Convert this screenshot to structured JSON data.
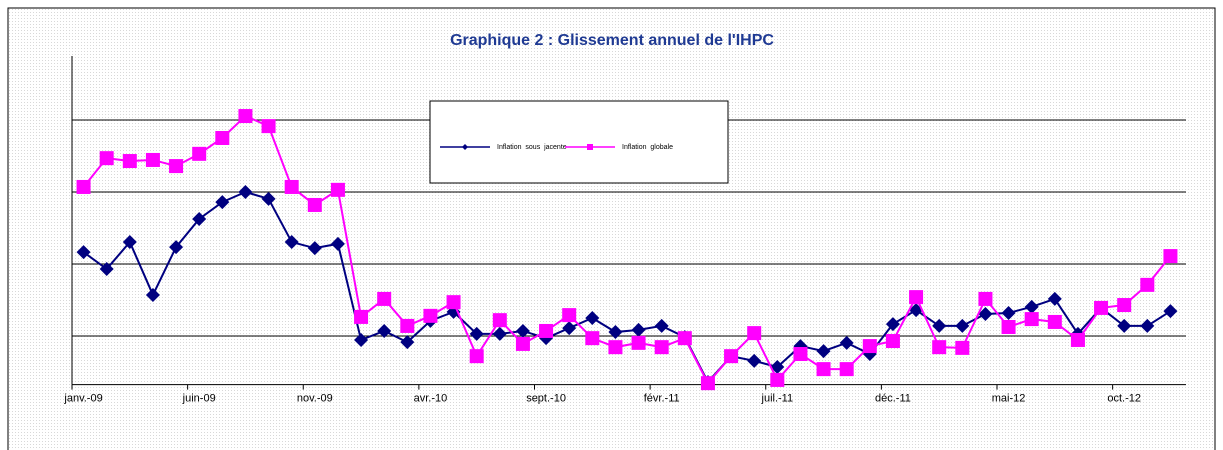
{
  "chart_data": {
    "type": "line",
    "title": "Graphique 2 : Glissement annuel de l'IHPC",
    "categories": [
      "janv.-09",
      null,
      null,
      null,
      null,
      "juin-09",
      null,
      null,
      null,
      null,
      "nov.-09",
      null,
      null,
      null,
      null,
      "avr.-10",
      null,
      null,
      null,
      null,
      "sept.-10",
      null,
      null,
      null,
      null,
      "févr.-11",
      null,
      null,
      null,
      null,
      "juil.-11",
      null,
      null,
      null,
      null,
      "déc.-11",
      null,
      null,
      null,
      null,
      "mai-12",
      null,
      null,
      null,
      null,
      "oct.-12",
      null,
      null
    ],
    "series": [
      {
        "name": "Inflation  sous  jacente",
        "color": "#000080",
        "marker": "diamond",
        "values": [
          2.33,
          1.86,
          2.61,
          1.14,
          2.47,
          3.25,
          3.72,
          4.0,
          3.81,
          2.61,
          2.44,
          2.56,
          -0.11,
          0.14,
          -0.17,
          0.42,
          0.67,
          0.06,
          0.06,
          0.14,
          -0.06,
          0.22,
          0.5,
          0.11,
          0.17,
          0.28,
          -0.03,
          -1.28,
          -0.56,
          -0.69,
          -0.86,
          -0.28,
          -0.42,
          -0.19,
          -0.5,
          0.33,
          0.72,
          0.28,
          0.28,
          0.61,
          0.64,
          0.81,
          1.03,
          0.06,
          0.78,
          0.28,
          0.28,
          0.69
        ]
      },
      {
        "name": "Inflation  globale",
        "color": "#ff00ff",
        "marker": "square",
        "values": [
          4.14,
          4.94,
          4.86,
          4.89,
          4.72,
          5.06,
          5.5,
          6.11,
          5.83,
          4.14,
          3.64,
          4.06,
          0.53,
          1.03,
          0.28,
          0.56,
          0.94,
          -0.56,
          0.44,
          -0.22,
          0.14,
          0.58,
          -0.06,
          -0.31,
          -0.19,
          -0.31,
          -0.06,
          -1.31,
          -0.56,
          0.08,
          -1.22,
          -0.5,
          -0.92,
          -0.92,
          -0.28,
          -0.14,
          1.08,
          -0.31,
          -0.33,
          1.03,
          0.25,
          0.47,
          0.39,
          -0.11,
          0.78,
          0.86,
          1.42,
          2.22
        ]
      }
    ],
    "ylim": [
      -1.35,
      7.5
    ],
    "gridlines": [
      0,
      2,
      4,
      6
    ],
    "grid": true
  }
}
